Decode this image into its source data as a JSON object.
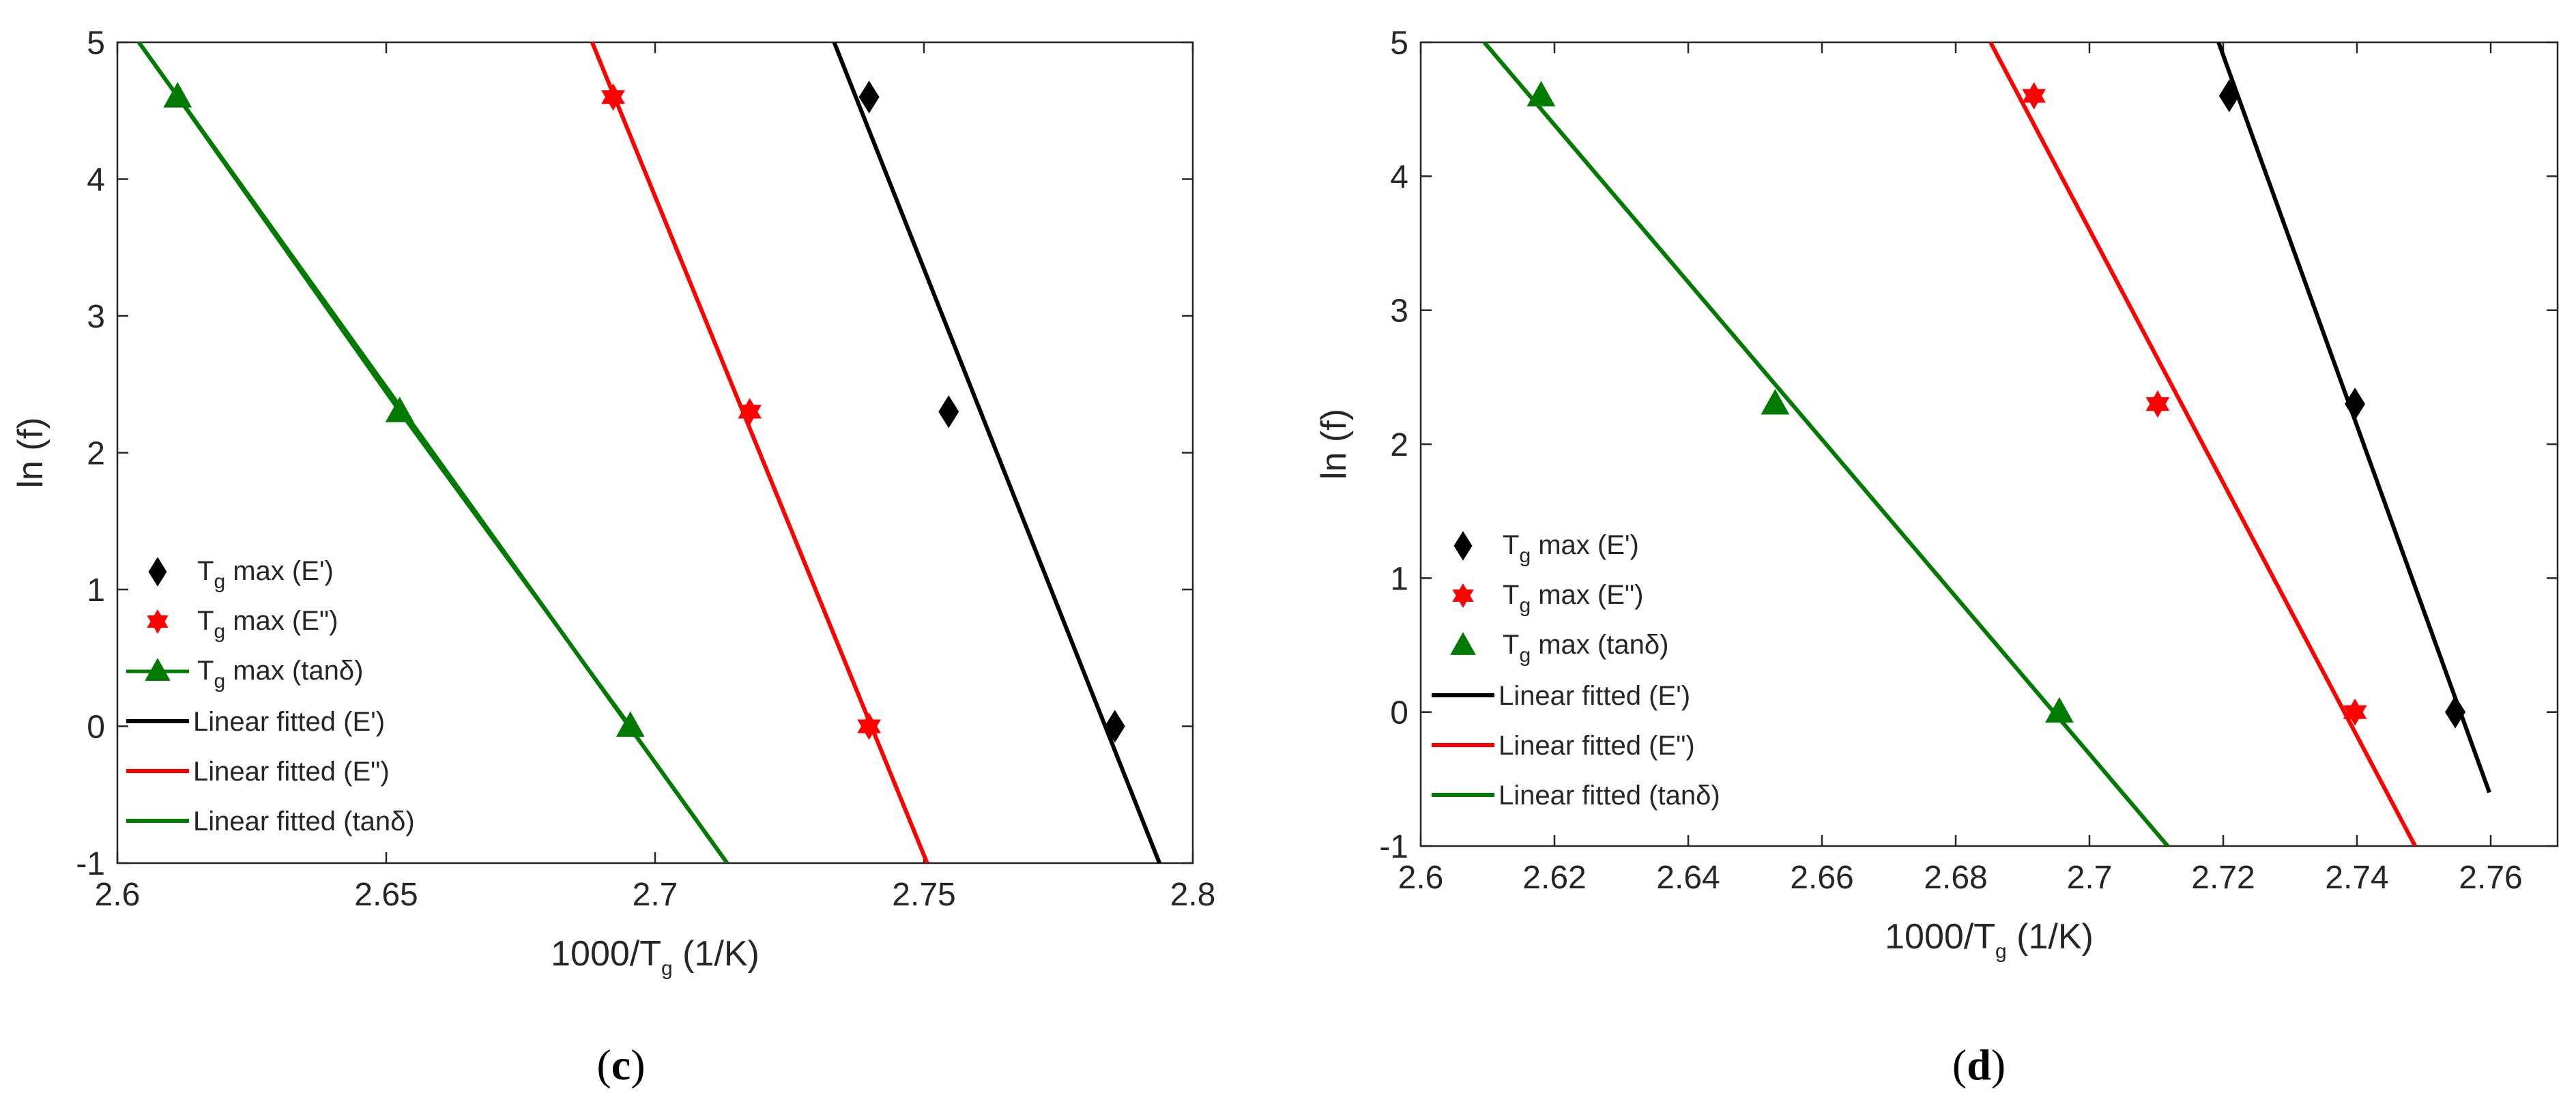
{
  "chart_data": [
    {
      "type": "scatter",
      "panel_label": {
        "open": "(",
        "letter": "c",
        "close": ")"
      },
      "xlabel": {
        "main": "1000/T",
        "sub": "g",
        "suffix": " (1/K)"
      },
      "ylabel": "ln (f)",
      "xlim": [
        2.6,
        2.8
      ],
      "ylim": [
        -1,
        5
      ],
      "xticks": [
        2.6,
        2.65,
        2.7,
        2.75,
        2.8
      ],
      "xtick_labels": [
        "2.6",
        "2.65",
        "2.7",
        "2.75",
        "2.8"
      ],
      "yticks": [
        -1,
        0,
        1,
        2,
        3,
        4,
        5
      ],
      "ytick_labels": [
        "-1",
        "0",
        "1",
        "2",
        "3",
        "4",
        "5"
      ],
      "grid": false,
      "legend_position": "bottom-left",
      "series": [
        {
          "name": {
            "main": "T",
            "sub": "g",
            "suffix": " max (E')"
          },
          "marker": "diamond",
          "color": "#000000",
          "x": [
            2.7398,
            2.7546,
            2.7855
          ],
          "y": [
            4.6,
            2.3,
            0.0
          ]
        },
        {
          "name": {
            "main": "T",
            "sub": "g",
            "suffix": " max (E\")"
          },
          "marker": "hexagram",
          "color": "#ff0000",
          "x": [
            2.6922,
            2.7176,
            2.7398
          ],
          "y": [
            4.6,
            2.3,
            0.0
          ]
        },
        {
          "name": {
            "main": "T",
            "sub": "g",
            "suffix": " max (tanδ)"
          },
          "marker": "triangle",
          "color": "#007a00",
          "with_line": true,
          "x": [
            2.6112,
            2.6525,
            2.6954
          ],
          "y": [
            4.6,
            2.3,
            0.0
          ]
        }
      ],
      "fit_lines": [
        {
          "name": "Linear fitted (E')",
          "color": "#000000",
          "x": [
            2.7333,
            2.7938
          ],
          "y": [
            5,
            -1
          ]
        },
        {
          "name": "Linear fitted (E\")",
          "color": "#ff0000",
          "x": [
            2.6883,
            2.7506
          ],
          "y": [
            5,
            -1
          ]
        },
        {
          "name": "Linear fitted (tanδ)",
          "color": "#007a00",
          "x": [
            2.604,
            2.7134
          ],
          "y": [
            5,
            -1
          ]
        }
      ]
    },
    {
      "type": "scatter",
      "panel_label": {
        "open": "(",
        "letter": "d",
        "close": ")"
      },
      "xlabel": {
        "main": "1000/T",
        "sub": "g",
        "suffix": " (1/K)"
      },
      "ylabel": "ln (f)",
      "xlim": [
        2.6,
        2.77
      ],
      "ylim": [
        -1,
        5
      ],
      "xticks": [
        2.6,
        2.62,
        2.64,
        2.66,
        2.68,
        2.7,
        2.72,
        2.74,
        2.76
      ],
      "xtick_labels": [
        "2.6",
        "2.62",
        "2.64",
        "2.66",
        "2.68",
        "2.7",
        "2.72",
        "2.74",
        "2.76"
      ],
      "yticks": [
        -1,
        0,
        1,
        2,
        3,
        4,
        5
      ],
      "ytick_labels": [
        "-1",
        "0",
        "1",
        "2",
        "3",
        "4",
        "5"
      ],
      "grid": false,
      "legend_position": "bottom-left",
      "series": [
        {
          "name": {
            "main": "T",
            "sub": "g",
            "suffix": " max (E')"
          },
          "marker": "diamond",
          "color": "#000000",
          "x": [
            2.7209,
            2.7397,
            2.7547
          ],
          "y": [
            4.6,
            2.3,
            0.0
          ]
        },
        {
          "name": {
            "main": "T",
            "sub": "g",
            "suffix": " max (E\")"
          },
          "marker": "hexagram",
          "color": "#ff0000",
          "x": [
            2.6917,
            2.7102,
            2.7397
          ],
          "y": [
            4.6,
            2.3,
            0.0
          ]
        },
        {
          "name": {
            "main": "T",
            "sub": "g",
            "suffix": " max (tanδ)"
          },
          "marker": "triangle",
          "color": "#007a00",
          "x": [
            2.618,
            2.653,
            2.6955
          ],
          "y": [
            4.6,
            2.3,
            0.0
          ]
        }
      ],
      "fit_lines": [
        {
          "name": "Linear fitted (E')",
          "color": "#000000",
          "x": [
            2.7193,
            2.7598
          ],
          "y": [
            5,
            -0.6
          ]
        },
        {
          "name": "Linear fitted (E\")",
          "color": "#ff0000",
          "x": [
            2.6852,
            2.7487
          ],
          "y": [
            5,
            -1
          ]
        },
        {
          "name": "Linear fitted (tanδ)",
          "color": "#007a00",
          "x": [
            2.6095,
            2.7117
          ],
          "y": [
            5,
            -1
          ]
        }
      ]
    }
  ]
}
